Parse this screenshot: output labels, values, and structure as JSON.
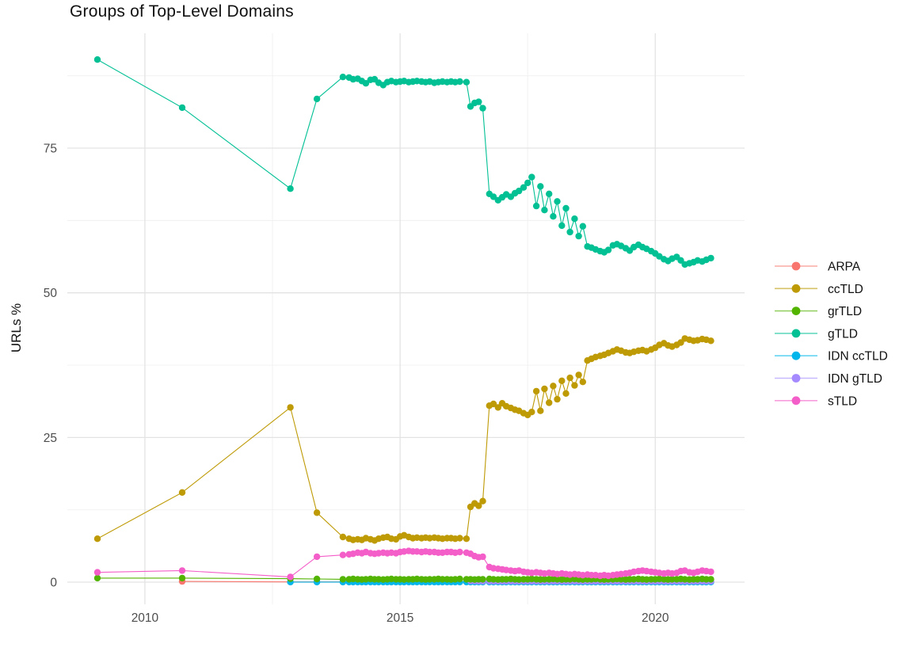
{
  "chart": {
    "title": "Groups of Top-Level Domains",
    "y_axis_title": "URLs %"
  },
  "colors": {
    "grid_major": "#e3e3e3",
    "grid_minor": "#f0f0f0",
    "tick_label": "#4d4d4d",
    "text": "#111111"
  },
  "chart_data": {
    "type": "line",
    "title": "Groups of Top-Level Domains",
    "xlabel": "",
    "ylabel": "URLs %",
    "xlim": [
      2008.48,
      2021.75
    ],
    "ylim": [
      -3.83,
      94.85
    ],
    "x_ticks": [
      2010,
      2015,
      2020
    ],
    "x_tick_labels": [
      "2010",
      "2015",
      "2020"
    ],
    "y_ticks": [
      0,
      25,
      50,
      75
    ],
    "y_tick_labels": [
      "0",
      "25",
      "50",
      "75"
    ],
    "x_minor_ticks": [
      2012.5,
      2017.5
    ],
    "y_minor_ticks": [
      12.5,
      37.5,
      62.5,
      87.5
    ],
    "grid": "major-and-minor",
    "legend_position": "right",
    "x": [
      2009.07,
      2010.73,
      2012.85,
      2013.37,
      2013.88,
      2014.0,
      2014.08,
      2014.17,
      2014.25,
      2014.33,
      2014.42,
      2014.5,
      2014.58,
      2014.67,
      2014.75,
      2014.83,
      2014.92,
      2015.0,
      2015.08,
      2015.17,
      2015.25,
      2015.33,
      2015.42,
      2015.5,
      2015.58,
      2015.67,
      2015.75,
      2015.83,
      2015.92,
      2016.0,
      2016.08,
      2016.17,
      2016.3,
      2016.38,
      2016.46,
      2016.54,
      2016.62,
      2016.75,
      2016.83,
      2016.92,
      2017.0,
      2017.08,
      2017.17,
      2017.25,
      2017.33,
      2017.42,
      2017.5,
      2017.58,
      2017.67,
      2017.75,
      2017.83,
      2017.92,
      2018.0,
      2018.08,
      2018.17,
      2018.25,
      2018.33,
      2018.42,
      2018.5,
      2018.58,
      2018.67,
      2018.75,
      2018.83,
      2018.92,
      2019.0,
      2019.08,
      2019.17,
      2019.25,
      2019.33,
      2019.42,
      2019.5,
      2019.58,
      2019.67,
      2019.75,
      2019.83,
      2019.92,
      2020.0,
      2020.08,
      2020.17,
      2020.25,
      2020.33,
      2020.42,
      2020.5,
      2020.58,
      2020.67,
      2020.75,
      2020.83,
      2020.92,
      2021.0,
      2021.09
    ],
    "series": [
      {
        "name": "ARPA",
        "color": "#F8766D",
        "values": [
          null,
          0.12,
          0.05,
          0.05,
          0.05,
          0.05,
          0.05,
          0.05,
          0.05,
          0.05,
          0.05,
          0.05,
          0.05,
          0.05,
          0.05,
          0.05,
          0.05,
          0.05,
          0.05,
          0.05,
          0.05,
          0.05,
          0.05,
          0.05,
          0.05,
          0.05,
          0.05,
          0.05,
          0.05,
          0.05,
          0.05,
          0.05,
          0.05,
          0.05,
          0.05,
          0.05,
          0.05,
          0.05,
          0.05,
          0.05,
          0.05,
          0.05,
          0.05,
          0.05,
          0.05,
          0.05,
          0.05,
          0.05,
          0.05,
          0.05,
          0.05,
          0.05,
          0.05,
          0.05,
          0.05,
          0.05,
          0.05,
          0.05,
          0.05,
          0.05,
          0.05,
          0.05,
          0.05,
          0.05,
          0.05,
          0.05,
          0.05,
          0.05,
          0.05,
          0.05,
          0.05,
          0.05,
          0.05,
          0.05,
          0.05,
          0.05,
          0.05,
          0.05,
          0.05,
          0.05,
          0.05,
          0.05,
          0.05,
          0.05,
          0.05,
          0.05,
          0.05,
          0.05,
          0.05,
          0.05
        ]
      },
      {
        "name": "ccTLD",
        "color": "#BE9A05",
        "values": [
          7.5,
          15.5,
          30.2,
          12.0,
          7.8,
          7.5,
          7.3,
          7.4,
          7.3,
          7.6,
          7.4,
          7.2,
          7.5,
          7.7,
          7.8,
          7.5,
          7.4,
          7.9,
          8.1,
          7.8,
          7.6,
          7.7,
          7.6,
          7.7,
          7.6,
          7.7,
          7.6,
          7.5,
          7.6,
          7.6,
          7.5,
          7.6,
          7.5,
          13.0,
          13.6,
          13.2,
          14.0,
          30.5,
          30.8,
          30.2,
          30.9,
          30.4,
          30.1,
          29.8,
          29.6,
          29.2,
          28.9,
          29.4,
          33.0,
          29.6,
          33.4,
          31.0,
          33.9,
          31.6,
          34.8,
          32.6,
          35.3,
          34.0,
          35.8,
          34.6,
          38.3,
          38.6,
          38.9,
          39.1,
          39.3,
          39.6,
          39.9,
          40.2,
          40.0,
          39.7,
          39.6,
          39.8,
          40.0,
          40.1,
          39.9,
          40.2,
          40.5,
          41.0,
          41.3,
          40.9,
          40.7,
          41.0,
          41.4,
          42.1,
          41.9,
          41.7,
          41.8,
          42.0,
          41.9,
          41.7
        ]
      },
      {
        "name": "grTLD",
        "color": "#53B400",
        "values": [
          0.7,
          0.7,
          0.6,
          0.55,
          0.5,
          0.5,
          0.55,
          0.5,
          0.45,
          0.5,
          0.55,
          0.5,
          0.5,
          0.45,
          0.5,
          0.55,
          0.5,
          0.5,
          0.45,
          0.5,
          0.5,
          0.55,
          0.5,
          0.45,
          0.5,
          0.5,
          0.55,
          0.5,
          0.5,
          0.45,
          0.5,
          0.55,
          0.5,
          0.5,
          0.45,
          0.5,
          0.5,
          0.55,
          0.5,
          0.45,
          0.5,
          0.5,
          0.55,
          0.5,
          0.45,
          0.5,
          0.5,
          0.55,
          0.5,
          0.45,
          0.5,
          0.5,
          0.55,
          0.5,
          0.45,
          0.5,
          0.5,
          0.55,
          0.5,
          0.45,
          0.5,
          0.5,
          0.55,
          0.5,
          0.45,
          0.5,
          0.5,
          0.55,
          0.5,
          0.45,
          0.5,
          0.5,
          0.55,
          0.5,
          0.45,
          0.5,
          0.5,
          0.55,
          0.5,
          0.45,
          0.5,
          0.5,
          0.55,
          0.5,
          0.45,
          0.5,
          0.5,
          0.55,
          0.5,
          0.5
        ]
      },
      {
        "name": "gTLD",
        "color": "#00C094",
        "values": [
          90.3,
          82.0,
          68.0,
          83.5,
          87.3,
          87.2,
          86.9,
          87.0,
          86.6,
          86.2,
          86.8,
          86.9,
          86.3,
          85.9,
          86.4,
          86.6,
          86.4,
          86.5,
          86.6,
          86.4,
          86.5,
          86.6,
          86.5,
          86.4,
          86.5,
          86.3,
          86.4,
          86.5,
          86.4,
          86.5,
          86.4,
          86.5,
          86.4,
          82.2,
          82.8,
          83.0,
          81.9,
          67.1,
          66.6,
          66.0,
          66.5,
          67.0,
          66.6,
          67.2,
          67.6,
          68.2,
          69.0,
          70.0,
          65.0,
          68.4,
          64.3,
          67.1,
          63.2,
          65.8,
          61.6,
          64.6,
          60.5,
          62.8,
          59.8,
          61.5,
          58.0,
          57.8,
          57.5,
          57.2,
          57.0,
          57.4,
          58.2,
          58.4,
          58.1,
          57.7,
          57.3,
          57.9,
          58.3,
          57.9,
          57.6,
          57.2,
          56.8,
          56.3,
          55.8,
          55.5,
          55.9,
          56.2,
          55.6,
          54.9,
          55.1,
          55.3,
          55.6,
          55.4,
          55.7,
          56.0
        ]
      },
      {
        "name": "IDN ccTLD",
        "color": "#00B6EB",
        "values": [
          null,
          null,
          0.02,
          0.02,
          0.02,
          0.02,
          0.02,
          0.02,
          0.02,
          0.02,
          0.02,
          0.02,
          0.02,
          0.02,
          0.02,
          0.02,
          0.02,
          0.02,
          0.02,
          0.02,
          0.02,
          0.02,
          0.02,
          0.02,
          0.02,
          0.02,
          0.02,
          0.02,
          0.02,
          0.02,
          0.02,
          0.02,
          0.02,
          0.02,
          0.02,
          0.02,
          0.02,
          0.02,
          0.02,
          0.02,
          0.02,
          0.02,
          0.02,
          0.02,
          0.02,
          0.02,
          0.02,
          0.02,
          0.02,
          0.02,
          0.02,
          0.02,
          0.02,
          0.02,
          0.02,
          0.02,
          0.02,
          0.02,
          0.02,
          0.02,
          0.02,
          0.02,
          0.02,
          0.02,
          0.02,
          0.02,
          0.02,
          0.02,
          0.02,
          0.02,
          0.02,
          0.02,
          0.02,
          0.02,
          0.02,
          0.02,
          0.02,
          0.02,
          0.02,
          0.02,
          0.02,
          0.02,
          0.02,
          0.02,
          0.02,
          0.02,
          0.02,
          0.02,
          0.02,
          0.02
        ]
      },
      {
        "name": "IDN gTLD",
        "color": "#A58AFF",
        "values": [
          null,
          null,
          null,
          null,
          null,
          null,
          null,
          null,
          null,
          null,
          null,
          null,
          null,
          null,
          null,
          null,
          null,
          null,
          null,
          null,
          null,
          null,
          null,
          null,
          null,
          null,
          null,
          null,
          null,
          null,
          null,
          null,
          null,
          0.2,
          0.18,
          0.15,
          0.15,
          0.15,
          0.15,
          0.15,
          0.15,
          0.15,
          0.15,
          0.15,
          0.15,
          0.15,
          0.15,
          0.15,
          0.15,
          0.15,
          0.15,
          0.15,
          0.15,
          0.15,
          0.15,
          0.15,
          0.15,
          0.15,
          0.15,
          0.15,
          0.15,
          0.15,
          0.15,
          0.15,
          0.15,
          0.15,
          0.15,
          0.15,
          0.15,
          0.15,
          0.15,
          0.15,
          0.15,
          0.15,
          0.15,
          0.15,
          0.15,
          0.15,
          0.15,
          0.15,
          0.15,
          0.15,
          0.15,
          0.15,
          0.15,
          0.15,
          0.15,
          0.15,
          0.15,
          0.15
        ]
      },
      {
        "name": "sTLD",
        "color": "#F45EC8",
        "values": [
          1.7,
          2.0,
          0.9,
          4.4,
          4.7,
          4.8,
          4.9,
          5.1,
          5.0,
          5.2,
          5.0,
          4.9,
          5.0,
          5.1,
          5.0,
          5.1,
          5.0,
          5.2,
          5.3,
          5.4,
          5.3,
          5.3,
          5.2,
          5.3,
          5.2,
          5.2,
          5.1,
          5.1,
          5.2,
          5.2,
          5.1,
          5.2,
          5.1,
          4.9,
          4.5,
          4.3,
          4.4,
          2.6,
          2.4,
          2.3,
          2.2,
          2.1,
          2.0,
          1.9,
          2.0,
          1.8,
          1.7,
          1.6,
          1.7,
          1.6,
          1.5,
          1.6,
          1.5,
          1.4,
          1.5,
          1.4,
          1.3,
          1.4,
          1.3,
          1.2,
          1.3,
          1.2,
          1.2,
          1.1,
          1.2,
          1.1,
          1.2,
          1.3,
          1.4,
          1.5,
          1.6,
          1.8,
          1.9,
          2.0,
          1.9,
          1.8,
          1.7,
          1.6,
          1.5,
          1.6,
          1.5,
          1.6,
          1.9,
          2.0,
          1.7,
          1.6,
          1.8,
          2.0,
          1.9,
          1.8
        ]
      }
    ]
  }
}
